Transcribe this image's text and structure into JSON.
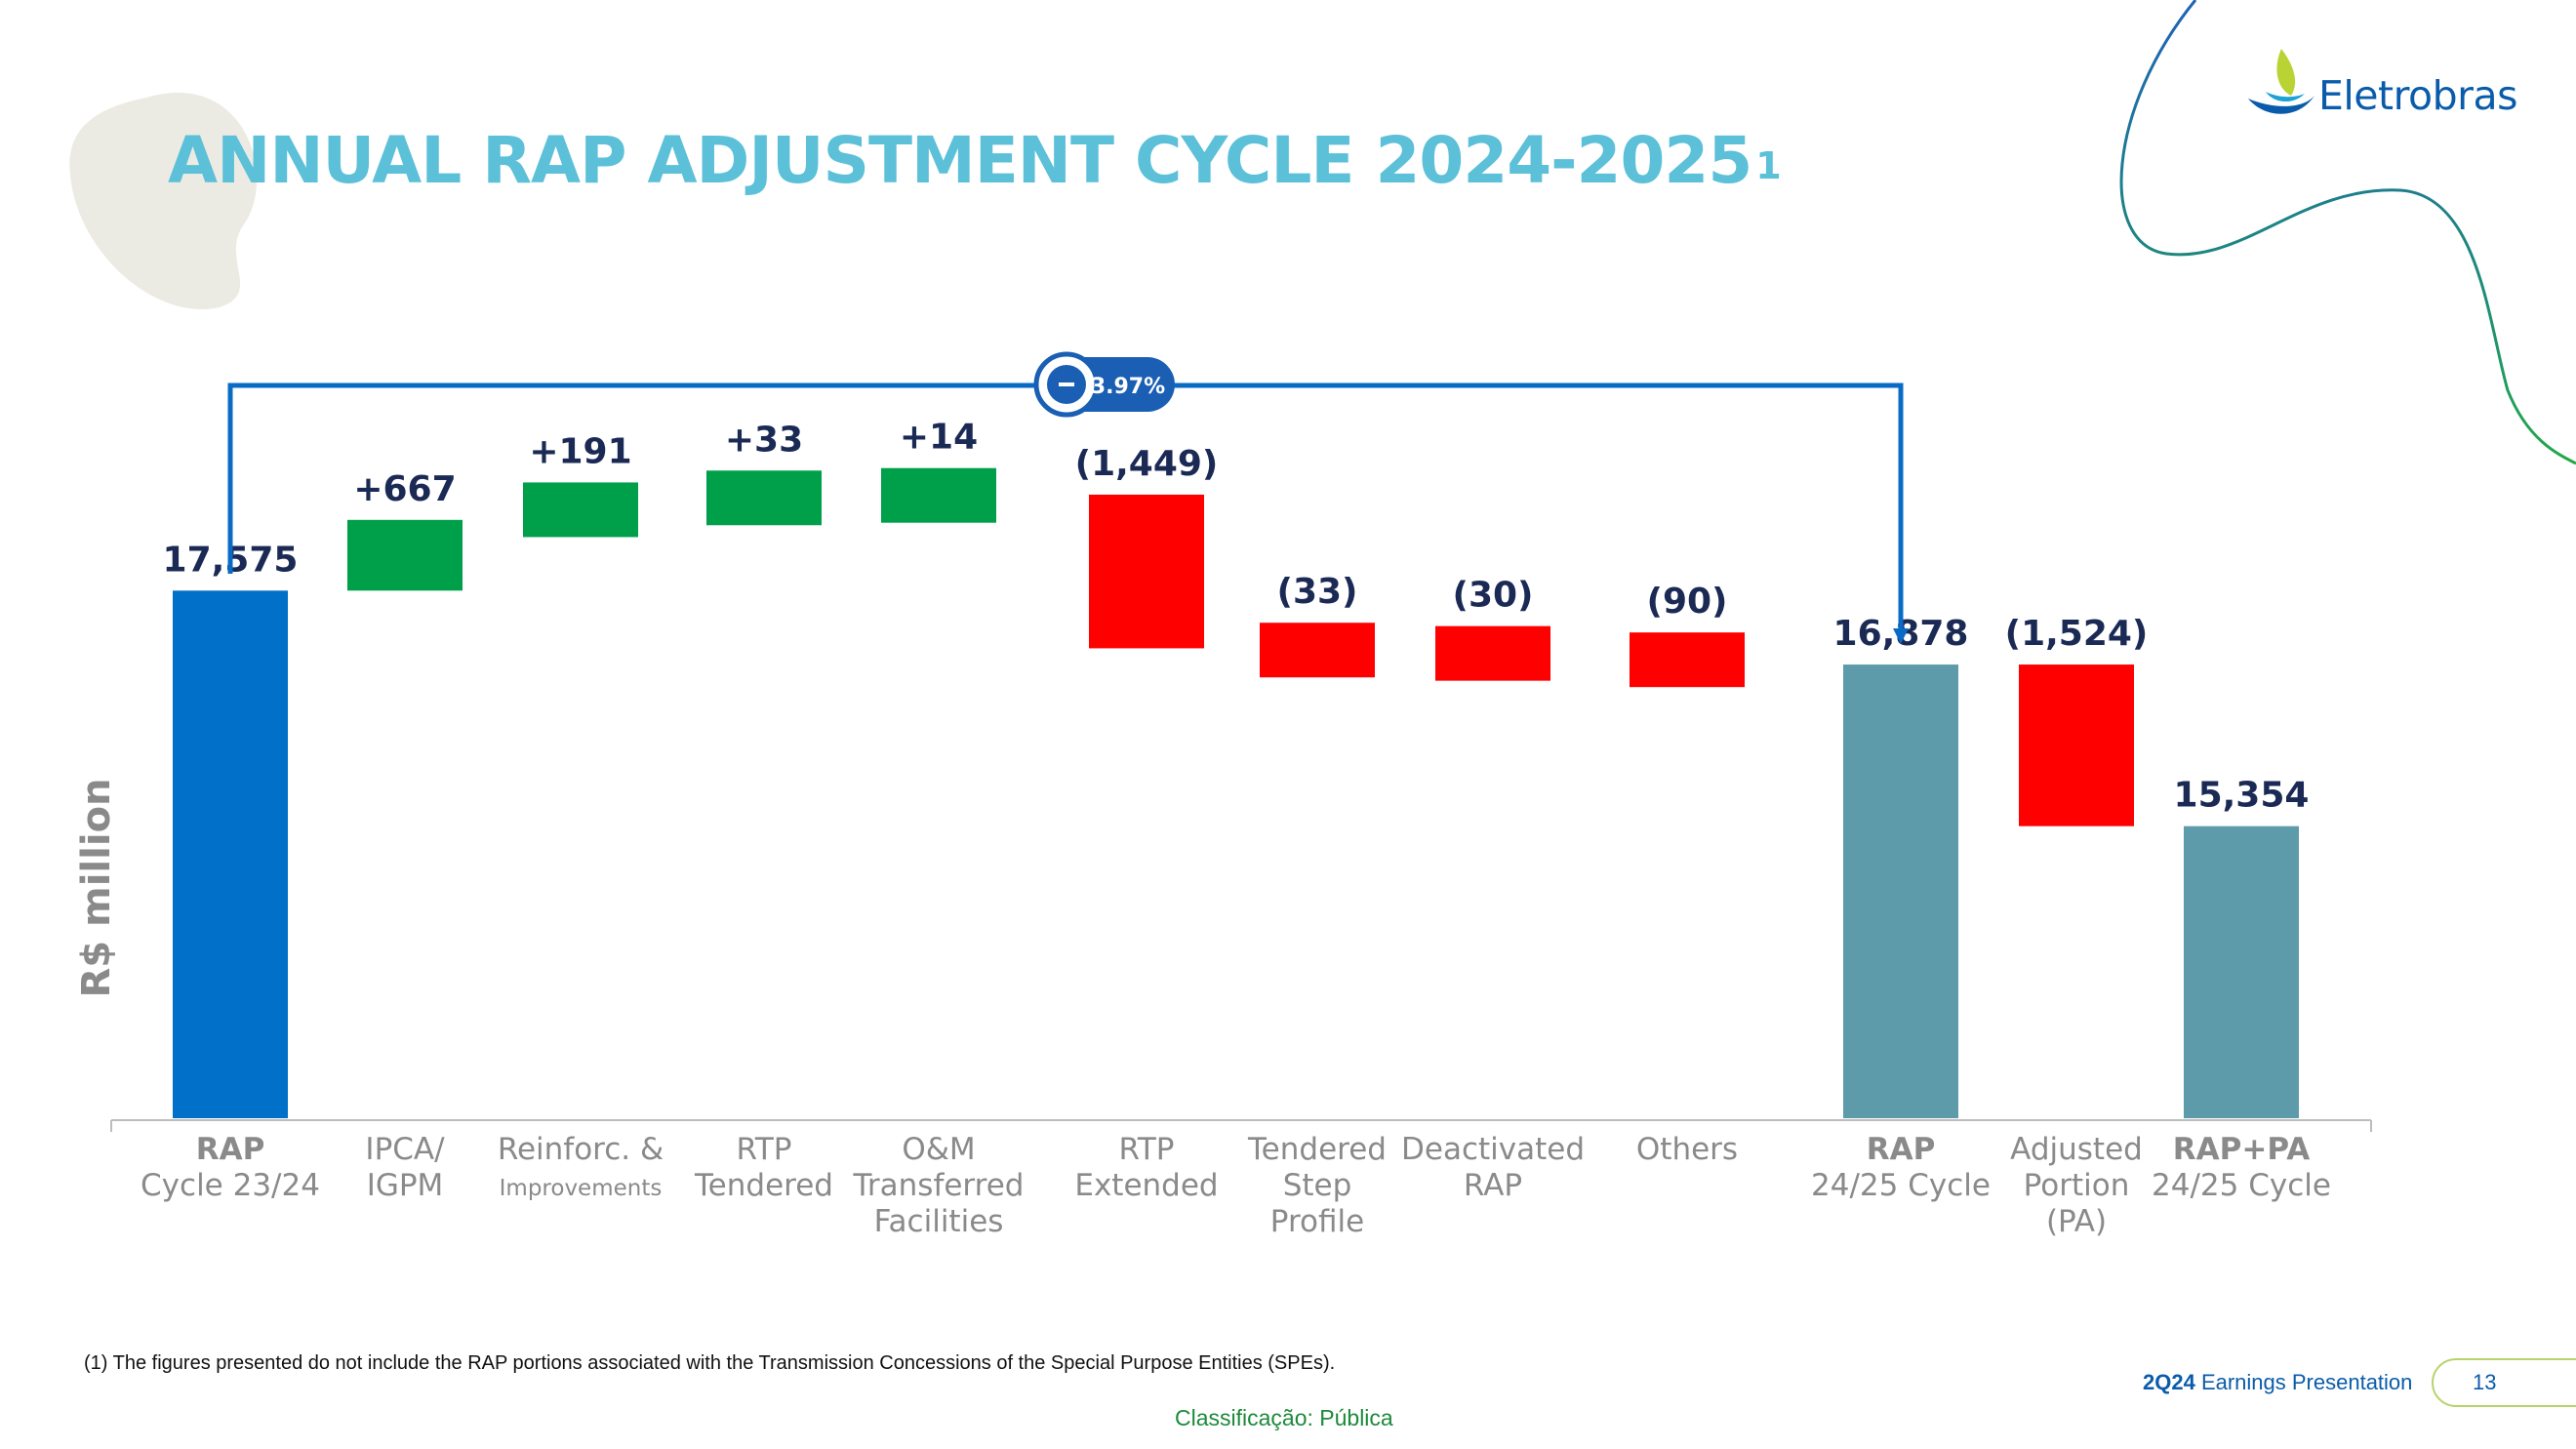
{
  "slide": {
    "title": "ANNUAL RAP ADJUSTMENT CYCLE 2024-2025",
    "title_superscript": "1",
    "logo_text": "Eletrobras",
    "footnote": "(1) The figures presented do not include the RAP portions associated with the Transmission Concessions of the Special Purpose Entities (SPEs).",
    "classification": "Classificação: Pública",
    "presentation_bold": "2Q24",
    "presentation_rest": " Earnings Presentation",
    "page_number": "13"
  },
  "chart_data": {
    "type": "waterfall",
    "ylabel": "R$ million",
    "annotation": {
      "label": "3.97%",
      "sign_icon": "minus-icon",
      "from": "RAP Cycle 23/24",
      "to": "RAP 24/25 Cycle"
    },
    "colors": {
      "start": "#0070c9",
      "increase": "#00a04a",
      "decrease": "#ff0000",
      "total": "#5d9bab",
      "label": "#1b2a55",
      "axis_text": "#8a8a8a"
    },
    "steps": [
      {
        "kind": "total",
        "value": 17575,
        "label": "17,575",
        "category": [
          "RAP",
          "Cycle 23/24"
        ],
        "bold_first_line": true
      },
      {
        "kind": "delta",
        "value": 667,
        "label": "+667",
        "category": [
          "IPCA/",
          "IGPM"
        ]
      },
      {
        "kind": "delta",
        "value": 191,
        "label": "+191",
        "category": [
          "Reinforc. &",
          "Improvements"
        ],
        "small_last_line": true
      },
      {
        "kind": "delta",
        "value": 33,
        "label": "+33",
        "category": [
          "RTP",
          "Tendered"
        ]
      },
      {
        "kind": "delta",
        "value": 14,
        "label": "+14",
        "category": [
          "O&M",
          "Transferred",
          "Facilities"
        ]
      },
      {
        "kind": "delta",
        "value": -1449,
        "label": "(1,449)",
        "category": [
          "RTP",
          "Extended"
        ]
      },
      {
        "kind": "delta",
        "value": -33,
        "label": "(33)",
        "category": [
          "Tendered",
          "Step",
          "Profile"
        ]
      },
      {
        "kind": "delta",
        "value": -30,
        "label": "(30)",
        "category": [
          "Deactivated",
          "RAP"
        ]
      },
      {
        "kind": "delta",
        "value": -90,
        "label": "(90)",
        "category": [
          "Others"
        ]
      },
      {
        "kind": "total",
        "value": 16878,
        "label": "16,878",
        "category": [
          "RAP",
          "24/25 Cycle"
        ],
        "bold_first_line": true
      },
      {
        "kind": "delta",
        "value": -1524,
        "label": "(1,524)",
        "category": [
          "Adjusted",
          "Portion",
          "(PA)"
        ]
      },
      {
        "kind": "total",
        "value": 15354,
        "label": "15,354",
        "category": [
          "RAP+PA",
          "24/25 Cycle"
        ],
        "bold_first_line": true
      }
    ]
  }
}
